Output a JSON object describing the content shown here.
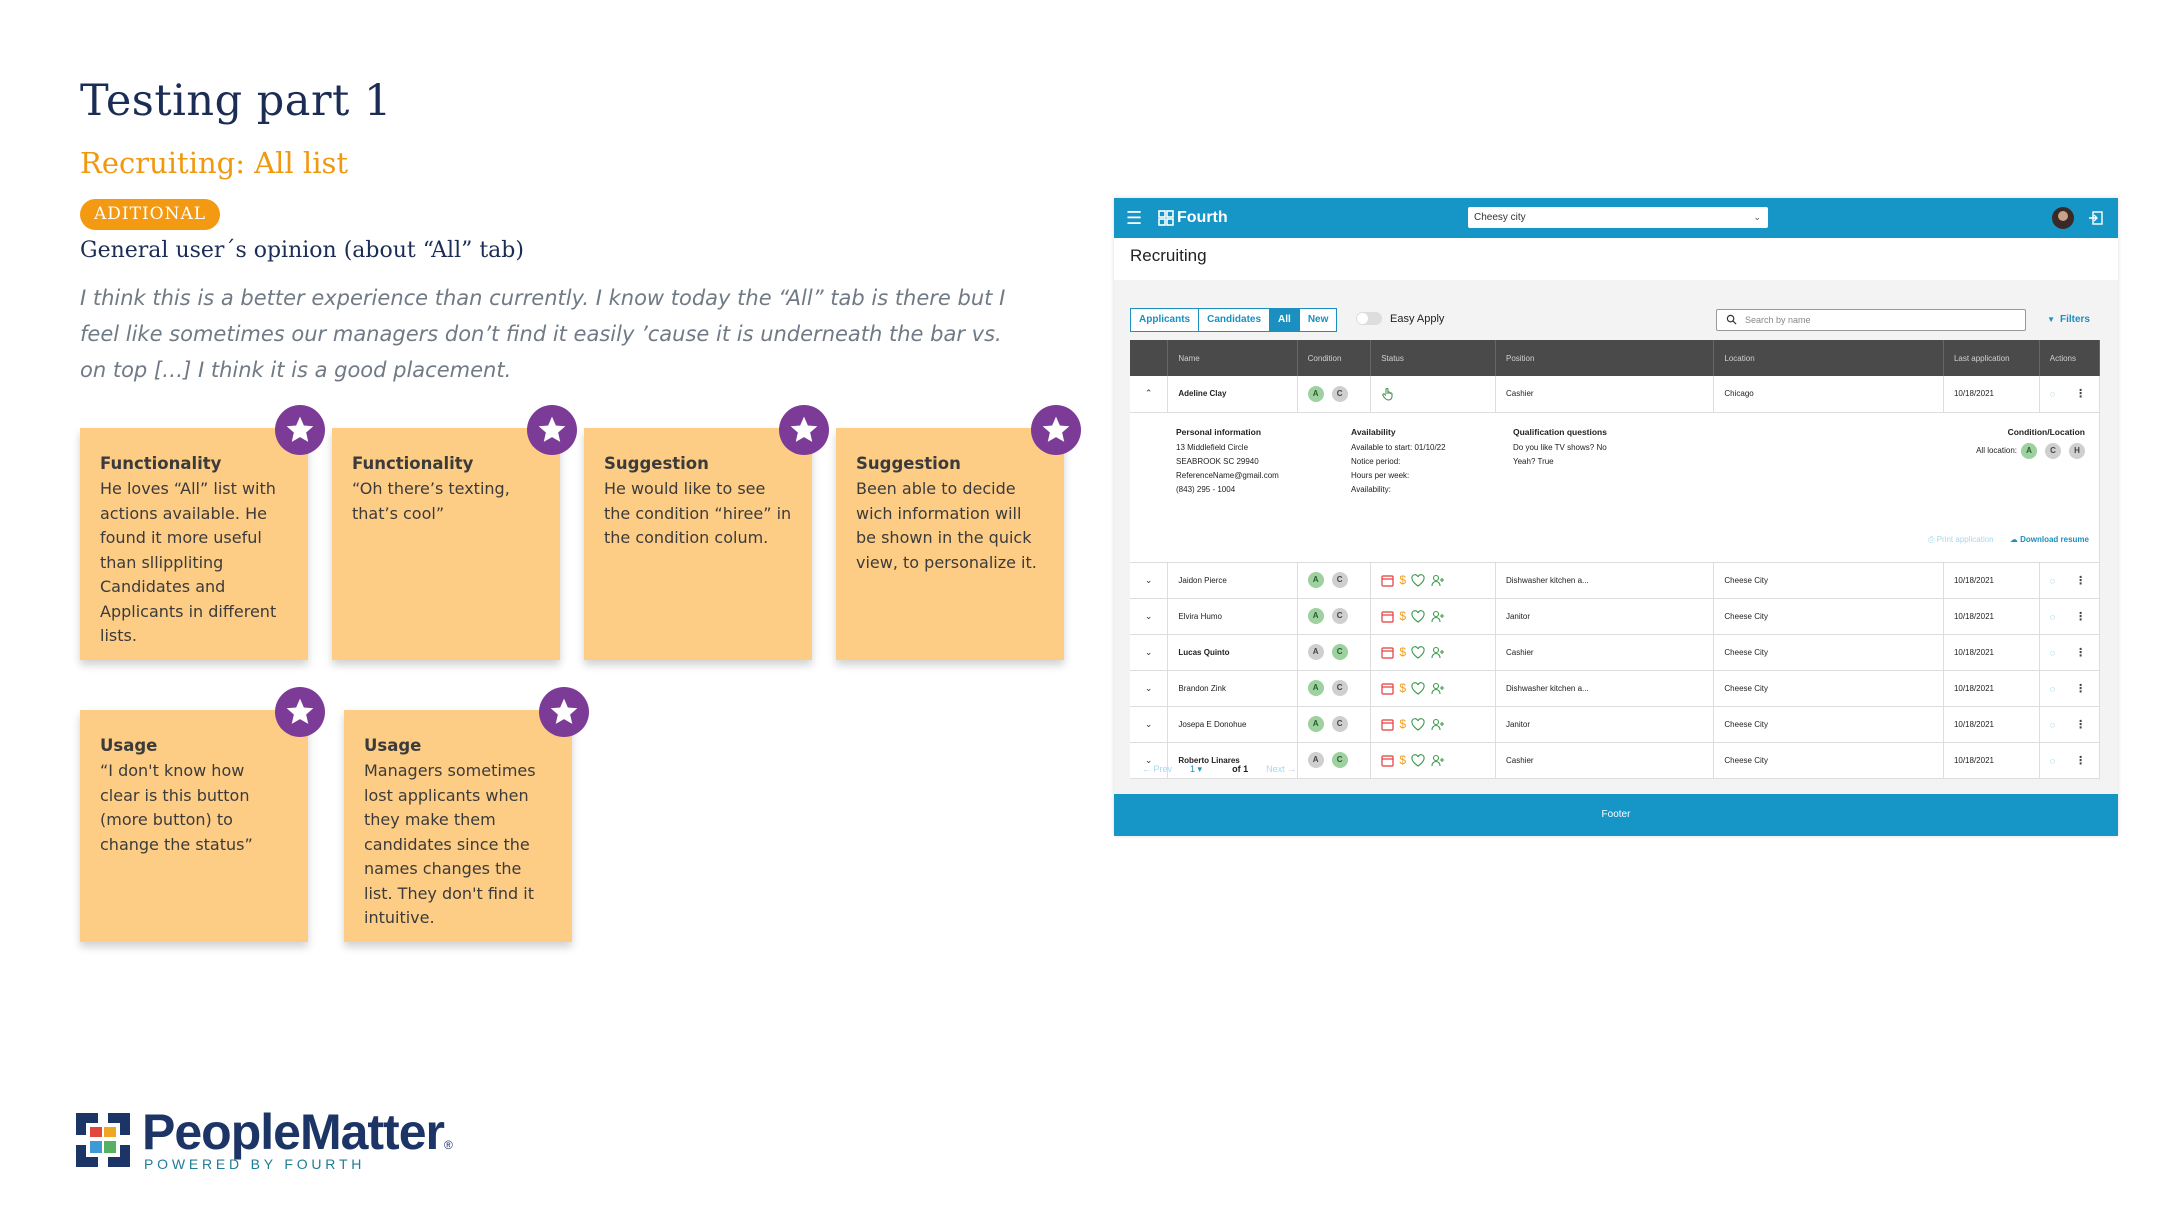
{
  "slide": {
    "title": "Testing part 1",
    "subtitle": "Recruiting: All list",
    "badge": "ADITIONAL",
    "opinion_title": "General user´s opinion (about “All” tab)",
    "quote": "I think this is a better experience than currently. I know today the “All” tab is there but I feel like sometimes our managers don’t find it easily ’cause it is underneath the bar vs. on top […] I think it is a good placement."
  },
  "notes": [
    {
      "title": "Functionality",
      "body": "He loves “All” list with actions available. He found it more useful than sllippliting Candidates and Applicants in different lists."
    },
    {
      "title": "Functionality",
      "body": "“Oh there’s texting, that’s cool”"
    },
    {
      "title": "Suggestion",
      "body": "He would like to see the condition “hiree” in the condition colum."
    },
    {
      "title": "Suggestion",
      "body": "Been able to decide wich information will be shown in the quick view, to personalize it."
    },
    {
      "title": "Usage",
      "body": "“I don't know how clear is this button (more button) to change the status”"
    },
    {
      "title": "Usage",
      "body": "Managers sometimes lost applicants when they make them candidates since the names changes the list. They don't find it intuitive."
    }
  ],
  "logo": {
    "name": "PeopleMatter",
    "registered": "®",
    "tagline": "POWERED BY FOURTH"
  },
  "app": {
    "brand": "Fourth",
    "site": "Cheesy city",
    "heading": "Recruiting",
    "tabs": [
      "Applicants",
      "Candidates",
      "All",
      "New"
    ],
    "active_tab": "All",
    "easy_apply": "Easy Apply",
    "search_placeholder": "Search by name",
    "filters": "Filters",
    "columns": [
      "Name",
      "Condition",
      "Status",
      "Position",
      "Location",
      "Last application",
      "Actions"
    ],
    "expanded": {
      "name": "Adeline Clay",
      "position": "Cashier",
      "location": "Chicago",
      "date": "10/18/2021",
      "personal_title": "Personal information",
      "personal_lines": [
        "13 Middlefield Circle",
        "SEABROOK SC 29940",
        "ReferenceName@gmail.com",
        "(843) 295 - 1004"
      ],
      "availability_title": "Availability",
      "availability_lines": [
        "Available to start: 01/10/22",
        "Notice period:",
        "Hours per week:",
        "Availability:"
      ],
      "qualification_title": "Qualification questions",
      "qualification_lines": [
        "Do you like TV shows? No",
        "Yeah? True"
      ],
      "condloc_title": "Condition/Location",
      "all_location": "All location:",
      "print": "Print application",
      "download": "Download resume"
    },
    "rows": [
      {
        "name": "Jaidon Pierce",
        "bold": false,
        "c_on": false,
        "position": "Dishwasher kitchen a...",
        "location": "Cheese City",
        "date": "10/18/2021"
      },
      {
        "name": "Elvira Humo",
        "bold": false,
        "c_on": false,
        "position": "Janitor",
        "location": "Cheese City",
        "date": "10/18/2021"
      },
      {
        "name": "Lucas Quinto",
        "bold": true,
        "c_on": true,
        "position": "Cashier",
        "location": "Cheese City",
        "date": "10/18/2021"
      },
      {
        "name": "Brandon Zink",
        "bold": false,
        "c_on": false,
        "position": "Dishwasher kitchen a...",
        "location": "Cheese City",
        "date": "10/18/2021"
      },
      {
        "name": "Josepa E Donohue",
        "bold": false,
        "c_on": false,
        "position": "Janitor",
        "location": "Cheese City",
        "date": "10/18/2021"
      },
      {
        "name": "Roberto Linares",
        "bold": true,
        "c_on": true,
        "position": "Cashier",
        "location": "Cheese City",
        "date": "10/18/2021"
      }
    ],
    "pager": {
      "prev": "Prev",
      "page": "1",
      "of": "of 1",
      "next": "Next"
    },
    "footer": "Footer"
  },
  "colors": {
    "accent": "#1596c7",
    "note": "#fdcd86",
    "star": "#7b3b97",
    "badge": "#f49a12"
  }
}
